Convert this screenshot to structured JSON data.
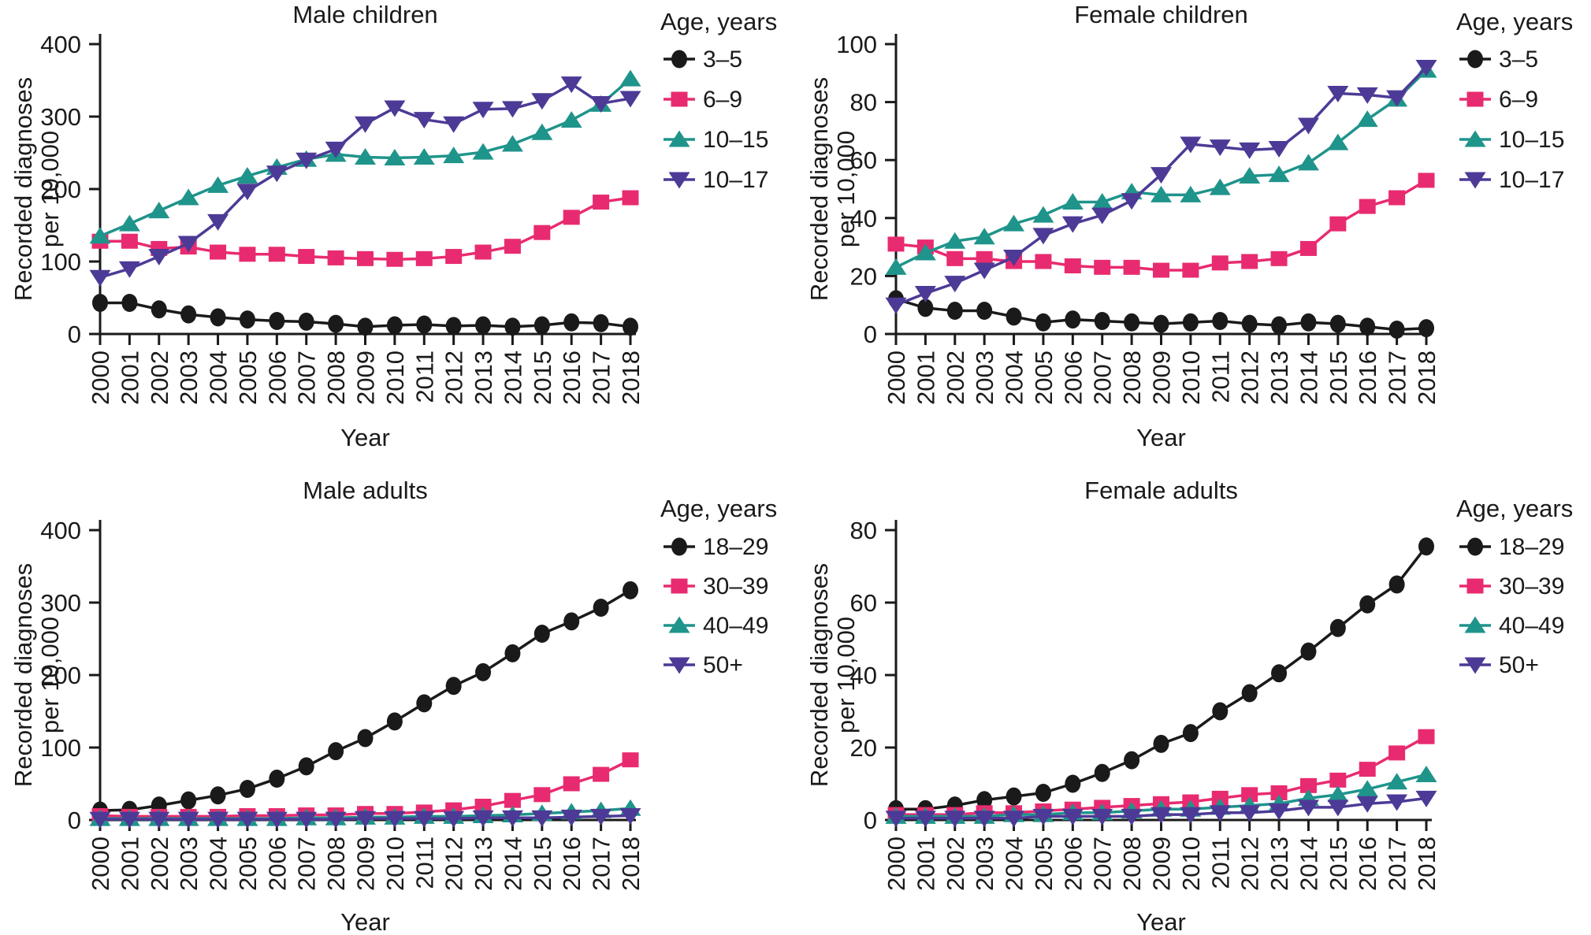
{
  "figure": {
    "ylabel_line1": "Recorded diagnoses",
    "ylabel_line2": "per 10,000",
    "xlabel": "Year",
    "legend_title": "Age, years"
  },
  "palette": {
    "black": "#1a1a1a",
    "pink": "#E82B70",
    "teal": "#1F948B",
    "purple": "#4D3A96"
  },
  "years": [
    "2000",
    "2001",
    "2002",
    "2003",
    "2004",
    "2005",
    "2006",
    "2007",
    "2008",
    "2009",
    "2010",
    "2011",
    "2012",
    "2013",
    "2014",
    "2015",
    "2016",
    "2017",
    "2018"
  ],
  "chart_data": [
    {
      "type": "line",
      "title": "Male children",
      "xlabel": "Year",
      "ylabel": "Recorded diagnoses per 10,000",
      "ylim": [
        0,
        400
      ],
      "yticks": [
        0,
        100,
        200,
        300,
        400
      ],
      "legend_title": "Age, years",
      "series": [
        {
          "name": "3–5",
          "marker": "circle",
          "color": "black",
          "values": [
            43,
            43,
            34,
            27,
            23,
            20,
            18,
            17,
            14,
            10,
            12,
            13,
            11,
            12,
            10,
            12,
            16,
            15,
            10
          ]
        },
        {
          "name": "6–9",
          "marker": "square",
          "color": "pink",
          "values": [
            128,
            128,
            118,
            120,
            113,
            110,
            110,
            107,
            105,
            104,
            103,
            104,
            107,
            113,
            121,
            140,
            161,
            182,
            188
          ]
        },
        {
          "name": "10–15",
          "marker": "triangle-up",
          "color": "teal",
          "values": [
            135,
            152,
            170,
            188,
            205,
            218,
            230,
            241,
            248,
            244,
            243,
            244,
            246,
            251,
            262,
            278,
            295,
            317,
            352
          ]
        },
        {
          "name": "10–17",
          "marker": "triangle-down",
          "color": "purple",
          "values": [
            78,
            90,
            107,
            125,
            155,
            197,
            222,
            240,
            255,
            290,
            312,
            296,
            290,
            310,
            311,
            322,
            345,
            318,
            325
          ]
        }
      ]
    },
    {
      "type": "line",
      "title": "Female children",
      "xlabel": "Year",
      "ylabel": "Recorded diagnoses per 10,000",
      "ylim": [
        0,
        100
      ],
      "yticks": [
        0,
        20,
        40,
        60,
        80,
        100
      ],
      "legend_title": "Age, years",
      "series": [
        {
          "name": "3–5",
          "marker": "circle",
          "color": "black",
          "values": [
            12,
            9,
            8,
            8,
            6,
            4,
            5,
            4.5,
            4,
            3.5,
            4,
            4.5,
            3.5,
            3,
            4,
            3.5,
            2.5,
            1.5,
            2
          ]
        },
        {
          "name": "6–9",
          "marker": "square",
          "color": "pink",
          "values": [
            31,
            30,
            26,
            26,
            25,
            25,
            23.5,
            23,
            23,
            22,
            22,
            24.5,
            25,
            26,
            29.5,
            38,
            44,
            47,
            53
          ]
        },
        {
          "name": "10–15",
          "marker": "triangle-up",
          "color": "teal",
          "values": [
            23,
            28,
            32,
            33.5,
            38,
            41,
            45.5,
            45.5,
            49,
            48,
            48,
            50.5,
            54.5,
            55,
            59,
            66,
            74,
            81,
            91
          ]
        },
        {
          "name": "10–17",
          "marker": "triangle-down",
          "color": "purple",
          "values": [
            10,
            14,
            17.5,
            22,
            26.5,
            34,
            38,
            41,
            46,
            55,
            65.5,
            64.5,
            63.5,
            64,
            72,
            83,
            82.5,
            81.5,
            92
          ]
        }
      ]
    },
    {
      "type": "line",
      "title": "Male adults",
      "xlabel": "Year",
      "ylabel": "Recorded diagnoses per 10,000",
      "ylim": [
        0,
        400
      ],
      "yticks": [
        0,
        100,
        200,
        300,
        400
      ],
      "legend_title": "Age, years",
      "series": [
        {
          "name": "18–29",
          "marker": "circle",
          "color": "black",
          "values": [
            13,
            14,
            20,
            27,
            34,
            43,
            57,
            74,
            95,
            113,
            136,
            161,
            185,
            204,
            230,
            257,
            274,
            293,
            317
          ]
        },
        {
          "name": "30–39",
          "marker": "square",
          "color": "pink",
          "values": [
            6,
            5,
            5,
            5,
            5,
            6,
            6,
            7,
            7,
            9,
            9,
            11,
            14,
            19,
            27,
            35,
            50,
            63,
            83
          ]
        },
        {
          "name": "40–49",
          "marker": "triangle-up",
          "color": "teal",
          "values": [
            2,
            2,
            2,
            2,
            2,
            2,
            2,
            3,
            3,
            4,
            4,
            5,
            5,
            6,
            7,
            9,
            11,
            13,
            16
          ]
        },
        {
          "name": "50+",
          "marker": "triangle-down",
          "color": "purple",
          "values": [
            1,
            1,
            1,
            1,
            1,
            1,
            1,
            1,
            1,
            2,
            2,
            2,
            2,
            3,
            3,
            3,
            4,
            5,
            6
          ]
        }
      ]
    },
    {
      "type": "line",
      "title": "Female adults",
      "xlabel": "Year",
      "ylabel": "Recorded diagnoses per 10,000",
      "ylim": [
        0,
        80
      ],
      "yticks": [
        0,
        20,
        40,
        60,
        80
      ],
      "legend_title": "Age, years",
      "series": [
        {
          "name": "18–29",
          "marker": "circle",
          "color": "black",
          "values": [
            3,
            3,
            4,
            5.5,
            6.5,
            7.5,
            10,
            13,
            16.5,
            21,
            24,
            30,
            35,
            40.5,
            46.5,
            53,
            59.5,
            65,
            75.5
          ]
        },
        {
          "name": "30–39",
          "marker": "square",
          "color": "pink",
          "values": [
            1.5,
            1.5,
            1.5,
            2,
            2,
            2.5,
            3,
            3.5,
            4,
            4.5,
            5,
            6,
            7,
            7.5,
            9.5,
            11,
            14,
            18.5,
            23
          ]
        },
        {
          "name": "40–49",
          "marker": "triangle-up",
          "color": "teal",
          "values": [
            1,
            1,
            1,
            1,
            1.5,
            1.5,
            2,
            2,
            2.5,
            3,
            3,
            3.5,
            4,
            4.5,
            6,
            7,
            8.5,
            10.5,
            12.5
          ]
        },
        {
          "name": "50+",
          "marker": "triangle-down",
          "color": "purple",
          "values": [
            0.5,
            0.5,
            0.5,
            0.5,
            0.5,
            1,
            1,
            1,
            1,
            1.5,
            1.5,
            2,
            2,
            2.5,
            3.5,
            3.5,
            4.5,
            5,
            6
          ]
        }
      ]
    }
  ]
}
